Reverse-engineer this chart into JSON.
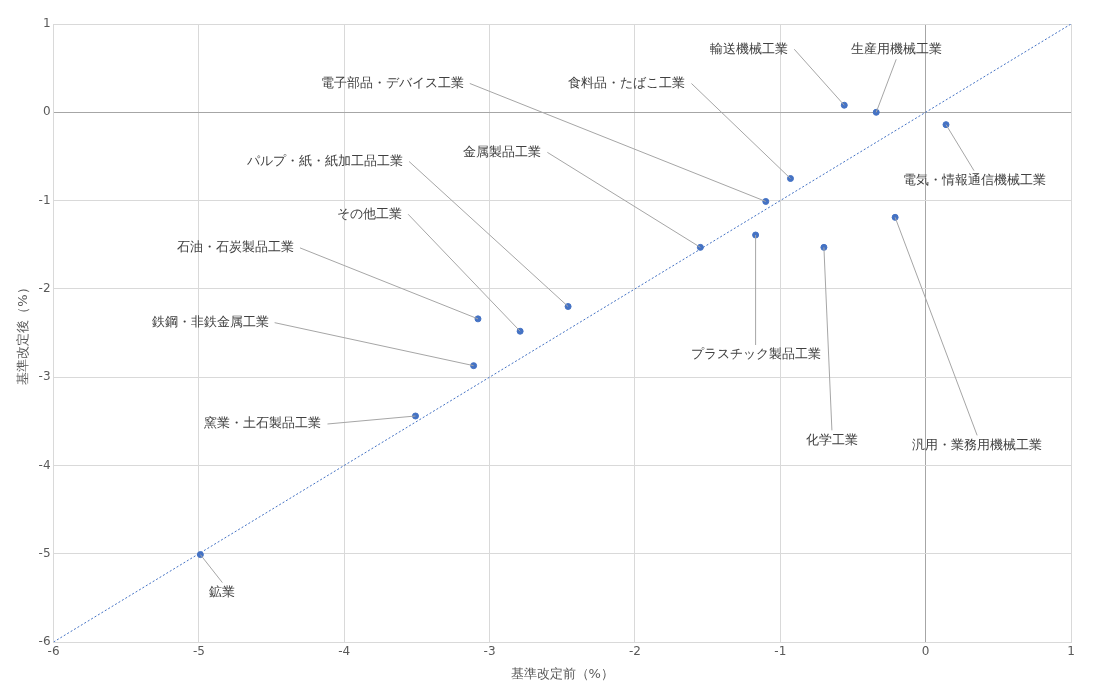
{
  "chart_data": {
    "type": "scatter",
    "xlabel": "基準改定前（%）",
    "ylabel": "基準改定後（%）",
    "xlim": [
      -6,
      1
    ],
    "xticks": [
      -6,
      -5,
      -4,
      -3,
      -2,
      -1,
      0,
      1
    ],
    "ylim": [
      -6,
      1
    ],
    "yticks": [
      -6,
      -5,
      -4,
      -3,
      -2,
      -1,
      0,
      1
    ],
    "grid": true,
    "marker": "circle",
    "series": [
      {
        "type": "scatter",
        "color": "#4472c4",
        "x": [
          -0.56,
          -0.34,
          0.14,
          -0.93,
          -1.1,
          -1.55,
          -1.17,
          -0.7,
          -0.21,
          -2.46,
          -2.79,
          -3.08,
          -3.11,
          -3.51,
          -4.99
        ],
        "values": [
          0.08,
          0.0,
          -0.14,
          -0.75,
          -1.01,
          -1.53,
          -1.39,
          -1.53,
          -1.19,
          -2.2,
          -2.48,
          -2.34,
          -2.87,
          -3.44,
          -5.01
        ]
      },
      {
        "type": "line",
        "color": "#4472c4",
        "line_style": "dotted",
        "marker": "none",
        "x": [
          -6,
          1
        ],
        "values": [
          -6,
          1
        ]
      }
    ],
    "annotations": [
      {
        "text": "輸送機械工業",
        "x": -0.56,
        "y": 0.08
      },
      {
        "text": "生産用機械工業",
        "x": -0.34,
        "y": 0.0
      },
      {
        "text": "電気・情報通信機械工業",
        "x": 0.14,
        "y": -0.14
      },
      {
        "text": "食料品・たばこ工業",
        "x": -0.93,
        "y": -0.75
      },
      {
        "text": "電子部品・デバイス工業",
        "x": -1.1,
        "y": -1.01
      },
      {
        "text": "金属製品工業",
        "x": -1.55,
        "y": -1.53
      },
      {
        "text": "プラスチック製品工業",
        "x": -1.17,
        "y": -1.39
      },
      {
        "text": "化学工業",
        "x": -0.7,
        "y": -1.53
      },
      {
        "text": "汎用・業務用機械工業",
        "x": -0.21,
        "y": -1.19
      },
      {
        "text": "パルプ・紙・紙加工品工業",
        "x": -2.46,
        "y": -2.2
      },
      {
        "text": "その他工業",
        "x": -2.79,
        "y": -2.48
      },
      {
        "text": "石油・石炭製品工業",
        "x": -3.08,
        "y": -2.34
      },
      {
        "text": "鉄鋼・非鉄金属工業",
        "x": -3.11,
        "y": -2.87
      },
      {
        "text": "窯業・土石製品工業",
        "x": -3.51,
        "y": -3.44
      },
      {
        "text": "鉱業",
        "x": -4.99,
        "y": -5.01
      }
    ]
  }
}
